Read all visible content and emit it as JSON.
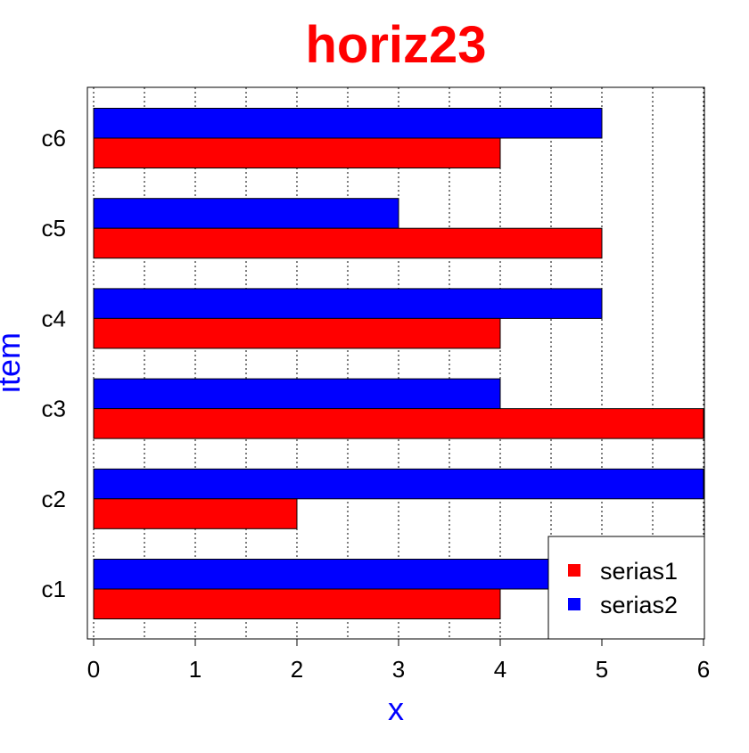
{
  "chart_data": {
    "type": "bar",
    "orientation": "horizontal",
    "title": "horiz23",
    "xlabel": "x",
    "ylabel": "item",
    "xlim": [
      0,
      6
    ],
    "xticks": [
      "0",
      "1",
      "2",
      "3",
      "4",
      "5",
      "6"
    ],
    "grid": true,
    "categories": [
      "c1",
      "c2",
      "c3",
      "c4",
      "c5",
      "c6"
    ],
    "series": [
      {
        "name": "serias1",
        "color": "#ff0000",
        "values": [
          4,
          2,
          6,
          4,
          5,
          4
        ]
      },
      {
        "name": "serias2",
        "color": "#0000ff",
        "values": [
          5,
          6,
          4,
          5,
          3,
          5
        ]
      }
    ],
    "legend_position": "bottom-right",
    "title_color": "#ff0000",
    "label_color": "#0000ff"
  }
}
